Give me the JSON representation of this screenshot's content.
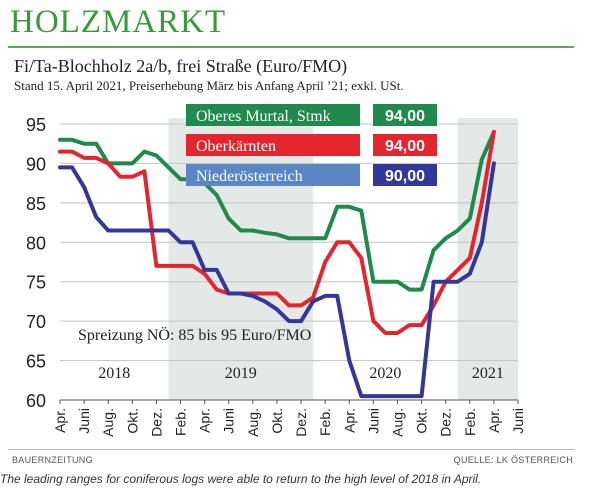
{
  "headline": "HOLZMARKT",
  "caption": "The leading ranges for coniferous logs were able to return to the high level of 2018 in April.",
  "footer": {
    "left": "BAUERNZEITUNG",
    "right": "QUELLE: LK ÖSTERREICH"
  },
  "colors": {
    "green": "#1f8a4c",
    "red": "#e3262d",
    "blue": "#34379a",
    "blue_legend": "#5b86c5",
    "band": "#e4e9e7",
    "headline": "#3a9a3a"
  },
  "chart_data": {
    "type": "line",
    "title": "Fi/Ta-Blochholz 2a/b, frei Straße (Euro/FMO)",
    "subtitle": "Stand 15. April 2021, Preiserhebung März bis Anfang April ’21; exkl. USt.",
    "annotation": "Spreizung NÖ: 85 bis 95 Euro/FMO",
    "ylim": [
      60,
      95
    ],
    "yticks": [
      60,
      65,
      70,
      75,
      80,
      85,
      90,
      95
    ],
    "xlim": [
      0,
      38
    ],
    "xtick_labels": [
      "Apr.",
      "Juni",
      "Aug.",
      "Okt.",
      "Dez.",
      "Feb.",
      "Apr.",
      "Juni",
      "Aug.",
      "Okt.",
      "Dez.",
      "Feb.",
      "Apr.",
      "Juni",
      "Aug.",
      "Okt.",
      "Dez.",
      "Feb.",
      "Apr.",
      "Juni"
    ],
    "years": [
      {
        "label": "2018",
        "center": 4.5,
        "band": [
          0,
          9
        ]
      },
      {
        "label": "2019",
        "center": 15,
        "band": [
          9,
          21
        ]
      },
      {
        "label": "2020",
        "center": 27,
        "band": [
          21,
          33
        ]
      },
      {
        "label": "2021",
        "center": 35.5,
        "band": [
          33,
          38
        ]
      }
    ],
    "shaded_years": [
      "2019",
      "2021"
    ],
    "grid": "horizontal",
    "series": [
      {
        "name": "Oberes Murtal, Stmk",
        "value_label": "94,00",
        "color": "#1f8a4c",
        "x": [
          0,
          1,
          2,
          3,
          4,
          5,
          6,
          7,
          8,
          9,
          10,
          11,
          12,
          13,
          14,
          15,
          16,
          17,
          18,
          19,
          20,
          21,
          22,
          23,
          24,
          25,
          26,
          27,
          28,
          29,
          30,
          31,
          32,
          33,
          34,
          35,
          36
        ],
        "y": [
          93,
          93,
          92.5,
          92.5,
          90,
          90,
          90,
          91.5,
          91,
          89.5,
          88,
          88,
          87.5,
          86,
          83,
          81.5,
          81.5,
          81.2,
          81,
          80.5,
          80.5,
          80.5,
          80.5,
          84.5,
          84.5,
          84,
          75,
          75,
          75,
          74,
          74,
          79,
          80.5,
          81.5,
          83,
          90.5,
          94
        ]
      },
      {
        "name": "Oberkärnten",
        "value_label": "94,00",
        "color": "#e3262d",
        "x": [
          0,
          1,
          2,
          3,
          4,
          5,
          6,
          7,
          8,
          9,
          10,
          11,
          12,
          13,
          14,
          15,
          16,
          17,
          18,
          19,
          20,
          21,
          22,
          23,
          24,
          25,
          26,
          27,
          28,
          29,
          30,
          31,
          32,
          33,
          34,
          35,
          36
        ],
        "y": [
          91.5,
          91.5,
          90.7,
          90.7,
          90,
          88.3,
          88.3,
          89,
          77,
          77,
          77,
          77,
          76,
          74,
          73.5,
          73.5,
          73.5,
          73.5,
          73.5,
          72,
          72,
          73,
          77.5,
          80,
          80,
          78,
          70,
          68.5,
          68.5,
          69.5,
          69.5,
          72,
          75,
          76.5,
          78,
          85,
          94
        ]
      },
      {
        "name": "Niederösterreich",
        "value_label": "90,00",
        "color": "#34379a",
        "x": [
          0,
          1,
          2,
          3,
          4,
          5,
          6,
          7,
          8,
          9,
          10,
          11,
          12,
          13,
          14,
          15,
          16,
          17,
          18,
          19,
          20,
          21,
          22,
          23,
          24,
          25,
          26,
          27,
          28,
          29,
          30,
          31,
          32,
          33,
          34,
          35,
          36
        ],
        "y": [
          89.5,
          89.5,
          87,
          83.2,
          81.5,
          81.5,
          81.5,
          81.5,
          81.5,
          81.5,
          80,
          80,
          76.5,
          76.5,
          73.5,
          73.5,
          73.2,
          72.5,
          71.5,
          70,
          70,
          72.5,
          73.2,
          73.2,
          65,
          60.5,
          60.5,
          60.5,
          60.5,
          60.5,
          60.5,
          75,
          75,
          75,
          76,
          80,
          90
        ]
      }
    ]
  }
}
